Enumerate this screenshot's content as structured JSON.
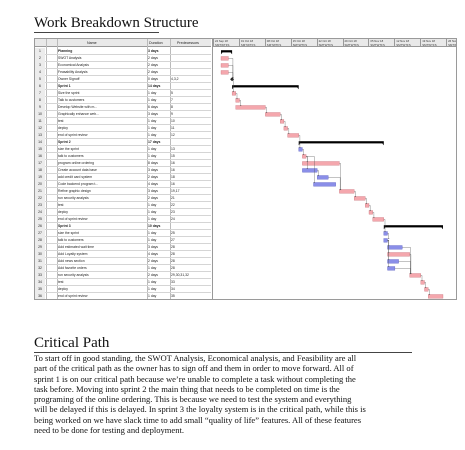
{
  "headings": {
    "wbs": "Work Breakdown Structure",
    "critical": "Critical Path"
  },
  "gantt": {
    "columns": {
      "id": "",
      "info": "",
      "name": "Name",
      "duration": "Duration",
      "predecessors": "Predecessors"
    },
    "week_labels": [
      "24 Sep 18",
      "01 Oct 18",
      "08 Oct 18",
      "15 Oct 18",
      "22 Oct 18",
      "29 Oct 18",
      "05 Nov 18",
      "12 Nov 18",
      "19 Nov 18",
      "26 Nov 18",
      "03 Dec 18",
      "10 Dec 18",
      "17 Dec 18",
      "24 Dec 18",
      "31 Dec 18",
      "07 Jan 19"
    ],
    "day_letters": "SMTWTFS",
    "colors": {
      "critical": "#f4a7ad",
      "normal": "#8a8ee8",
      "summary": "#000000",
      "link": "#555555"
    },
    "tasks": [
      {
        "id": "1",
        "name": "Planning",
        "duration": "3 days",
        "pred": "",
        "type": "summary",
        "s": 0,
        "d": 3
      },
      {
        "id": "2",
        "name": "SWOT Analysis",
        "duration": "2 days",
        "pred": "",
        "type": "task",
        "s": 0,
        "d": 2,
        "crit": true
      },
      {
        "id": "3",
        "name": "Economical Analysis",
        "duration": "2 days",
        "pred": "",
        "type": "task",
        "s": 0,
        "d": 2,
        "crit": true
      },
      {
        "id": "4",
        "name": "Feasability Analysis",
        "duration": "2 days",
        "pred": "",
        "type": "task",
        "s": 0,
        "d": 2,
        "crit": true
      },
      {
        "id": "5",
        "name": "Owner Signoff",
        "duration": "0 days",
        "pred": "4,3,2",
        "type": "milestone",
        "s": 3,
        "d": 0
      },
      {
        "id": "6",
        "name": "Sprint 1",
        "duration": "14 days",
        "pred": "",
        "type": "summary",
        "s": 3,
        "d": 18
      },
      {
        "id": "7",
        "name": "Size the sprint",
        "duration": "1 day",
        "pred": "5",
        "type": "task",
        "s": 3,
        "d": 1,
        "crit": true
      },
      {
        "id": "8",
        "name": "Talk to customers",
        "duration": "1 day",
        "pred": "7",
        "type": "task",
        "s": 4,
        "d": 1,
        "crit": true
      },
      {
        "id": "9",
        "name": "Develop Website with m...",
        "duration": "6 days",
        "pred": "8",
        "type": "task",
        "s": 4,
        "d": 8,
        "crit": true
      },
      {
        "id": "10",
        "name": "Graphically enhance web...",
        "duration": "3 days",
        "pred": "9",
        "type": "task",
        "s": 12,
        "d": 4,
        "crit": true
      },
      {
        "id": "11",
        "name": "test",
        "duration": "1 day",
        "pred": "10",
        "type": "task",
        "s": 16,
        "d": 1,
        "crit": true
      },
      {
        "id": "12",
        "name": "deploy",
        "duration": "1 day",
        "pred": "11",
        "type": "task",
        "s": 17,
        "d": 1,
        "crit": true
      },
      {
        "id": "13",
        "name": "end of sprint review",
        "duration": "1 day",
        "pred": "12",
        "type": "task",
        "s": 18,
        "d": 3,
        "crit": true
      },
      {
        "id": "14",
        "name": "Sprint 2",
        "duration": "17 days",
        "pred": "",
        "type": "summary",
        "s": 21,
        "d": 23
      },
      {
        "id": "15",
        "name": "size the sprint",
        "duration": "1 day",
        "pred": "13",
        "type": "task",
        "s": 21,
        "d": 1,
        "crit": false
      },
      {
        "id": "16",
        "name": "talk to customers",
        "duration": "1 day",
        "pred": "15",
        "type": "task",
        "s": 22,
        "d": 1,
        "crit": true
      },
      {
        "id": "17",
        "name": "program online ordering",
        "duration": "8 days",
        "pred": "16",
        "type": "task",
        "s": 22,
        "d": 10,
        "crit": true
      },
      {
        "id": "18",
        "name": "Create account data base",
        "duration": "3 days",
        "pred": "16",
        "type": "task",
        "s": 22,
        "d": 4,
        "crit": false
      },
      {
        "id": "19",
        "name": "add credit card system",
        "duration": "2 days",
        "pred": "18",
        "type": "task",
        "s": 26,
        "d": 3,
        "crit": false
      },
      {
        "id": "20",
        "name": "Code backend program t...",
        "duration": "4 days",
        "pred": "16",
        "type": "task",
        "s": 25,
        "d": 6,
        "crit": false
      },
      {
        "id": "21",
        "name": "Refine graphic design",
        "duration": "3 days",
        "pred": "19,17",
        "type": "task",
        "s": 32,
        "d": 4,
        "crit": true
      },
      {
        "id": "22",
        "name": "run security analysis",
        "duration": "2 days",
        "pred": "21",
        "type": "task",
        "s": 36,
        "d": 3,
        "crit": true
      },
      {
        "id": "23",
        "name": "test",
        "duration": "1 day",
        "pred": "22",
        "type": "task",
        "s": 39,
        "d": 1,
        "crit": true
      },
      {
        "id": "24",
        "name": "deploy",
        "duration": "1 day",
        "pred": "23",
        "type": "task",
        "s": 40,
        "d": 1,
        "crit": true
      },
      {
        "id": "25",
        "name": "end of sprint review",
        "duration": "1 day",
        "pred": "24",
        "type": "task",
        "s": 41,
        "d": 3,
        "crit": true
      },
      {
        "id": "26",
        "name": "Sprint 3",
        "duration": "10 days",
        "pred": "",
        "type": "summary",
        "s": 44,
        "d": 16
      },
      {
        "id": "27",
        "name": "size the sprint",
        "duration": "1 day",
        "pred": "25",
        "type": "task",
        "s": 44,
        "d": 1,
        "crit": false
      },
      {
        "id": "28",
        "name": "talk to customers",
        "duration": "1 day",
        "pred": "27",
        "type": "task",
        "s": 44,
        "d": 1,
        "crit": false
      },
      {
        "id": "29",
        "name": "Add estimated wait time",
        "duration": "3 days",
        "pred": "28",
        "type": "task",
        "s": 45,
        "d": 4,
        "crit": false
      },
      {
        "id": "30",
        "name": "Add Loyalty system",
        "duration": "4 days",
        "pred": "28",
        "type": "task",
        "s": 45,
        "d": 6,
        "crit": true
      },
      {
        "id": "31",
        "name": "Add news section",
        "duration": "2 days",
        "pred": "28",
        "type": "task",
        "s": 45,
        "d": 3,
        "crit": false
      },
      {
        "id": "32",
        "name": "Add favorite orders",
        "duration": "1 day",
        "pred": "28",
        "type": "task",
        "s": 45,
        "d": 2,
        "crit": false
      },
      {
        "id": "33",
        "name": "run security analysis",
        "duration": "2 days",
        "pred": "29,30,31,32",
        "type": "task",
        "s": 51,
        "d": 3,
        "crit": true
      },
      {
        "id": "34",
        "name": "test",
        "duration": "1 day",
        "pred": "33",
        "type": "task",
        "s": 54,
        "d": 1,
        "crit": true
      },
      {
        "id": "35",
        "name": "deploy",
        "duration": "1 day",
        "pred": "34",
        "type": "task",
        "s": 55,
        "d": 1,
        "crit": true
      },
      {
        "id": "36",
        "name": "end of sprint review",
        "duration": "1 day",
        "pred": "35",
        "type": "task",
        "s": 56,
        "d": 4,
        "crit": true
      }
    ]
  },
  "paragraph_lines": [
    "To start off in good standing, the SWOT Analysis, Economical analysis, and Feasibility are all",
    "part of the critical path as the owner has to sign off and them in order to move forward. All of",
    "sprint 1 is on our critical path because we’re unable to complete a task without completing the",
    "task before. Moving into sprint 2 the main thing that needs to be completed on time is the",
    "programing of the online ordering. This is because we need to test the system and everything",
    "will be delayed if this is delayed. In sprint 3 the loyalty system is in the critical path, while this is",
    "being worked on we have slack time to add small “quality of life” features. All of these features",
    "need to be done for testing and deployment."
  ]
}
